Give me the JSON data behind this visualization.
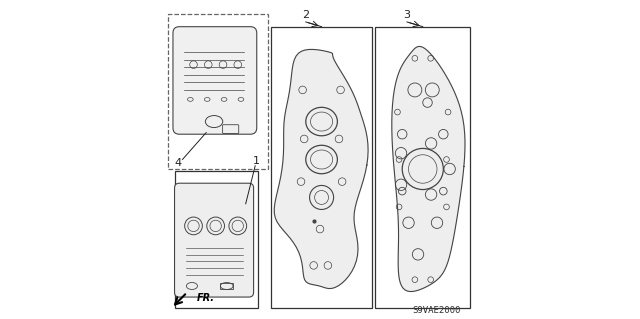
{
  "background_color": "#ffffff",
  "part_code": "S9VAE2000",
  "figsize": [
    6.4,
    3.19
  ],
  "dpi": 100,
  "gray": "#444444",
  "dark": "#222222",
  "light_fill": "#eeeeee",
  "lighter_fill": "#f0f0f0"
}
